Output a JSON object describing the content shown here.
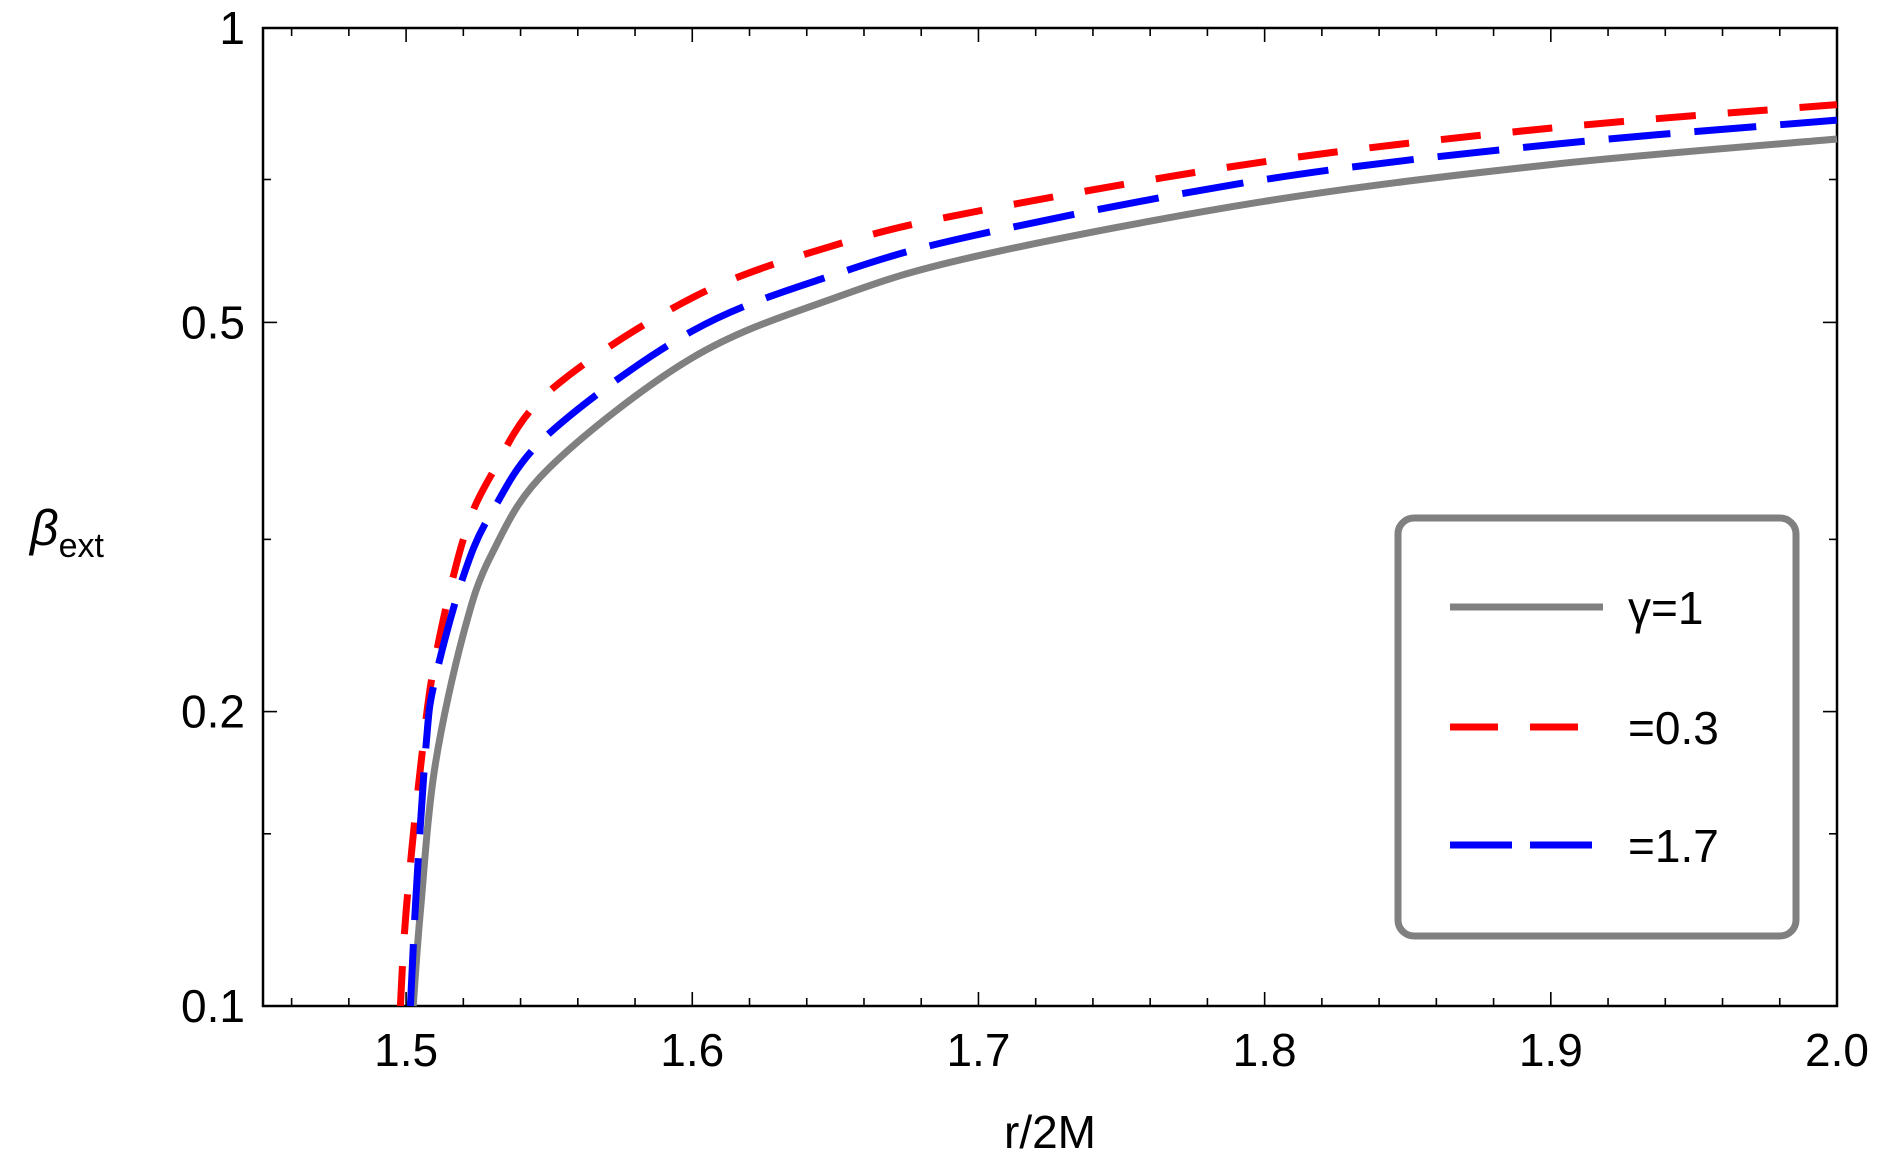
{
  "chart_data": {
    "type": "line",
    "xlabel": "r/2M",
    "ylabel": {
      "main": "β",
      "sub": "ext"
    },
    "xlim": [
      1.45,
      2.0
    ],
    "ylim": [
      0.1,
      1.0
    ],
    "yscale": "log",
    "x_ticks": [
      {
        "value": 1.5,
        "label": "1.5"
      },
      {
        "value": 1.6,
        "label": "1.6"
      },
      {
        "value": 1.7,
        "label": "1.7"
      },
      {
        "value": 1.8,
        "label": "1.8"
      },
      {
        "value": 1.9,
        "label": "1.9"
      },
      {
        "value": 2.0,
        "label": "2.0"
      }
    ],
    "x_minor_step": 0.02,
    "y_ticks": [
      {
        "value": 0.1,
        "label": "0.1"
      },
      {
        "value": 0.2,
        "label": "0.2"
      },
      {
        "value": 0.5,
        "label": "0.5"
      },
      {
        "value": 1.0,
        "label": "1"
      }
    ],
    "y_minor_ticks": [
      0.15,
      0.3,
      0.7
    ],
    "grid": false,
    "legend_position": "bottom-right",
    "series": [
      {
        "key": "gamma-1",
        "name": "γ=1",
        "color": "#808080",
        "style": "solid",
        "x": [
          1.5025,
          1.505,
          1.51,
          1.52,
          1.53,
          1.55,
          1.6,
          1.65,
          1.7,
          1.8,
          1.9,
          2.0
        ],
        "values": [
          0.1,
          0.125,
          0.175,
          0.24,
          0.29,
          0.355,
          0.46,
          0.53,
          0.585,
          0.665,
          0.725,
          0.77
        ]
      },
      {
        "key": "gamma-0.3",
        "name": "=0.3",
        "color": "#ff0000",
        "style": "short-dash",
        "x": [
          1.498,
          1.5,
          1.505,
          1.51,
          1.52,
          1.53,
          1.55,
          1.6,
          1.65,
          1.7,
          1.8,
          1.9,
          2.0
        ],
        "values": [
          0.1,
          0.125,
          0.175,
          0.225,
          0.3,
          0.35,
          0.425,
          0.53,
          0.6,
          0.65,
          0.73,
          0.79,
          0.835
        ]
      },
      {
        "key": "gamma-1.7",
        "name": "=1.7",
        "color": "#0000ff",
        "style": "long-dash",
        "x": [
          1.5015,
          1.5035,
          1.507,
          1.51,
          1.52,
          1.53,
          1.55,
          1.6,
          1.65,
          1.7,
          1.8,
          1.9,
          2.0
        ],
        "values": [
          0.1,
          0.13,
          0.185,
          0.215,
          0.275,
          0.32,
          0.385,
          0.49,
          0.56,
          0.615,
          0.7,
          0.76,
          0.805
        ]
      }
    ]
  }
}
